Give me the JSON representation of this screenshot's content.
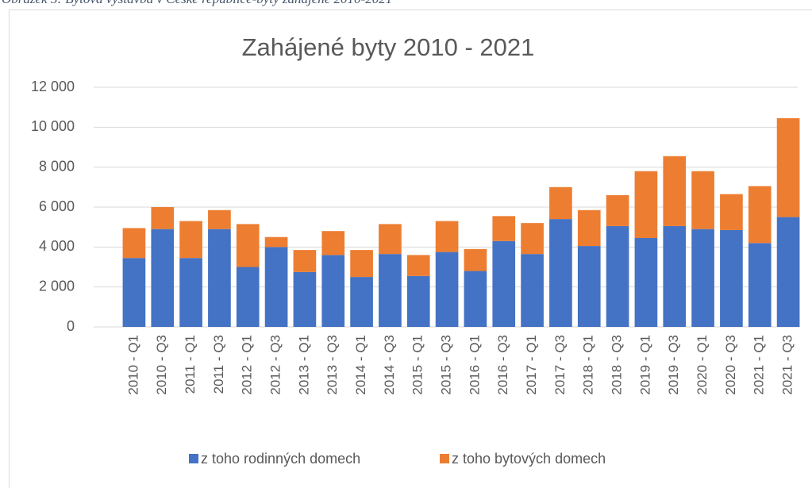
{
  "caption": "Obrázek 5: Bytová výstavba v České republice-byty zahájené 2010-2021",
  "chart_data": {
    "type": "stacked-bar",
    "title": "Zahájené byty 2010 - 2021",
    "categories": [
      "2010 - Q1",
      "2010 - Q3",
      "2011 - Q1",
      "2011 - Q3",
      "2012 - Q1",
      "2012 - Q3",
      "2013 - Q1",
      "2013 - Q3",
      "2014 - Q1",
      "2014 - Q3",
      "2015 - Q1",
      "2015 - Q3",
      "2016 - Q1",
      "2016 - Q3",
      "2017 - Q1",
      "2017 - Q3",
      "2018 - Q1",
      "2018 - Q3",
      "2019 - Q1",
      "2019 - Q3",
      "2020 - Q1",
      "2020 - Q3",
      "2021 - Q1",
      "2021 - Q3"
    ],
    "series": [
      {
        "name": "z toho rodinných domech",
        "color": "#4472c4",
        "values": [
          3450,
          4900,
          3450,
          4900,
          3000,
          4000,
          2750,
          3600,
          2500,
          3650,
          2550,
          3750,
          2800,
          4300,
          3650,
          5400,
          4050,
          5050,
          4450,
          5050,
          4900,
          4850,
          4200,
          5500
        ]
      },
      {
        "name": "z toho bytových domech",
        "color": "#ed7d31",
        "values": [
          1500,
          1100,
          1850,
          950,
          2150,
          500,
          1100,
          1200,
          1350,
          1500,
          1050,
          1550,
          1100,
          1250,
          1550,
          1600,
          1800,
          1550,
          3350,
          3500,
          2900,
          1800,
          2850,
          4950
        ]
      }
    ],
    "ylim": [
      0,
      12000
    ],
    "yticks": [
      0,
      {
        "value": 2000,
        "label": "2 000"
      },
      {
        "value": 4000,
        "label": "4 000"
      },
      {
        "value": 6000,
        "label": "6 000"
      },
      {
        "value": 8000,
        "label": "8 000"
      },
      {
        "value": 10000,
        "label": "10 000"
      },
      {
        "value": 12000,
        "label": "12 000"
      }
    ],
    "grid": true,
    "legend": "bottom"
  }
}
